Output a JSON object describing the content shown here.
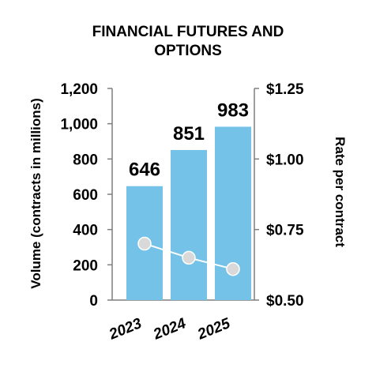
{
  "chart_data": {
    "type": "bar",
    "title": [
      "FINANCIAL FUTURES AND",
      "OPTIONS"
    ],
    "categories": [
      "2023",
      "2024",
      "2025"
    ],
    "series": [
      {
        "axis": "left",
        "type": "bar",
        "values": [
          646,
          851,
          983
        ],
        "data_labels": [
          "646",
          "851",
          "983"
        ],
        "color": "#74c2e8"
      },
      {
        "axis": "right",
        "type": "line",
        "values": [
          0.7,
          0.65,
          0.61
        ],
        "color": "#ffffff"
      }
    ],
    "ylabel": "Volume (contracts in millions)",
    "ylabel_right": "Rate per contract",
    "ylim": [
      0,
      1200
    ],
    "ylim_right": [
      0.5,
      1.25
    ],
    "yticks": [
      "0",
      "200",
      "400",
      "600",
      "800",
      "1,000",
      "1,200"
    ],
    "yticks_right": [
      "$0.50",
      "$0.75",
      "$1.00",
      "$1.25"
    ],
    "grid": false,
    "axis_color": "#7f7f7f",
    "marker_color": "#d9d9d9"
  }
}
